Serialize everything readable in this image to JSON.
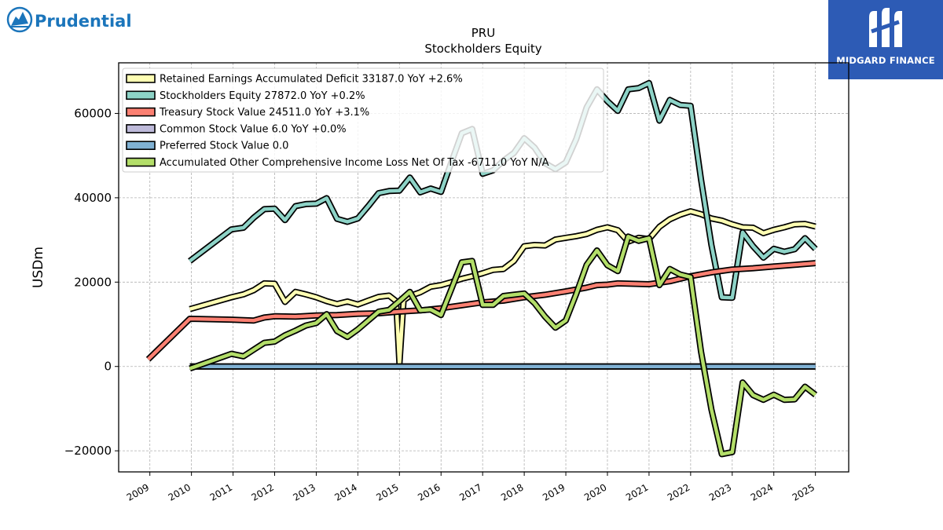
{
  "branding": {
    "left_logo_text": "Prudential",
    "left_logo_icon": "rock-of-gibraltar-icon",
    "right_logo_text": "MIDGARD FINANCE",
    "right_logo_icon": "midgard-m-icon",
    "left_color": "#1b75bb",
    "right_bg": "#2d5bb5"
  },
  "chart_data": {
    "type": "line",
    "title": "PRU",
    "subtitle": "Stockholders  Equity",
    "xlabel": "",
    "ylabel": "USDm",
    "xlim": [
      2008.25,
      2025.8
    ],
    "ylim": [
      -25000,
      72000
    ],
    "x_ticks": [
      "2009",
      "2010",
      "2011",
      "2012",
      "2013",
      "2014",
      "2015",
      "2016",
      "2017",
      "2018",
      "2019",
      "2020",
      "2021",
      "2022",
      "2023",
      "2024",
      "2025"
    ],
    "y_ticks": [
      -20000,
      0,
      20000,
      40000,
      60000
    ],
    "y_tick_labels": [
      "−20000",
      "0",
      "20000",
      "40000",
      "60000"
    ],
    "grid": true,
    "legend_position": "top-left",
    "series": [
      {
        "name": "Retained Earnings Accumulated Deficit",
        "legend": "Retained Earnings Accumulated Deficit  33187.0 YoY +2.6%",
        "color": "#ffffb3",
        "points": [
          [
            2009.96,
            13600
          ],
          [
            2010.96,
            16400
          ],
          [
            2011.25,
            17100
          ],
          [
            2011.5,
            18100
          ],
          [
            2011.75,
            19700
          ],
          [
            2012.0,
            19600
          ],
          [
            2012.25,
            15300
          ],
          [
            2012.5,
            17700
          ],
          [
            2012.75,
            17100
          ],
          [
            2013.0,
            16400
          ],
          [
            2013.25,
            15500
          ],
          [
            2013.5,
            14800
          ],
          [
            2013.75,
            15400
          ],
          [
            2014.0,
            14700
          ],
          [
            2014.25,
            15600
          ],
          [
            2014.5,
            16500
          ],
          [
            2014.75,
            16800
          ],
          [
            2014.92,
            15500
          ],
          [
            2015.0,
            600
          ],
          [
            2015.1,
            15700
          ],
          [
            2015.25,
            16700
          ],
          [
            2015.5,
            17600
          ],
          [
            2015.75,
            18900
          ],
          [
            2016.0,
            19300
          ],
          [
            2016.25,
            20000
          ],
          [
            2016.5,
            20800
          ],
          [
            2016.75,
            21400
          ],
          [
            2017.0,
            22100
          ],
          [
            2017.25,
            22900
          ],
          [
            2017.5,
            23100
          ],
          [
            2017.75,
            25000
          ],
          [
            2018.0,
            28500
          ],
          [
            2018.25,
            28800
          ],
          [
            2018.5,
            28700
          ],
          [
            2018.75,
            30100
          ],
          [
            2019.0,
            30500
          ],
          [
            2019.25,
            30900
          ],
          [
            2019.5,
            31400
          ],
          [
            2019.75,
            32400
          ],
          [
            2020.0,
            33000
          ],
          [
            2020.25,
            32300
          ],
          [
            2020.5,
            29600
          ],
          [
            2020.75,
            30500
          ],
          [
            2021.0,
            30200
          ],
          [
            2021.25,
            33100
          ],
          [
            2021.5,
            34900
          ],
          [
            2021.75,
            36000
          ],
          [
            2022.0,
            36800
          ],
          [
            2022.25,
            36100
          ],
          [
            2022.5,
            35100
          ],
          [
            2022.75,
            34600
          ],
          [
            2023.0,
            33700
          ],
          [
            2023.25,
            33000
          ],
          [
            2023.5,
            32900
          ],
          [
            2023.75,
            31600
          ],
          [
            2024.0,
            32400
          ],
          [
            2024.25,
            33000
          ],
          [
            2024.5,
            33700
          ],
          [
            2024.75,
            33800
          ],
          [
            2025.0,
            33187
          ]
        ]
      },
      {
        "name": "Stockholders Equity",
        "legend": "Stockholders Equity  27872.0 YoY +0.2%",
        "color": "#8dd3c7",
        "points": [
          [
            2009.96,
            25000
          ],
          [
            2010.96,
            32500
          ],
          [
            2011.25,
            32900
          ],
          [
            2011.5,
            35300
          ],
          [
            2011.75,
            37300
          ],
          [
            2012.0,
            37400
          ],
          [
            2012.25,
            34700
          ],
          [
            2012.5,
            38000
          ],
          [
            2012.75,
            38500
          ],
          [
            2013.0,
            38600
          ],
          [
            2013.25,
            39900
          ],
          [
            2013.5,
            35000
          ],
          [
            2013.75,
            34300
          ],
          [
            2014.0,
            35100
          ],
          [
            2014.25,
            38000
          ],
          [
            2014.5,
            41100
          ],
          [
            2014.75,
            41600
          ],
          [
            2015.0,
            41700
          ],
          [
            2015.25,
            44800
          ],
          [
            2015.5,
            41300
          ],
          [
            2015.75,
            42200
          ],
          [
            2016.0,
            41400
          ],
          [
            2016.25,
            48500
          ],
          [
            2016.5,
            55300
          ],
          [
            2016.75,
            56300
          ],
          [
            2017.0,
            45700
          ],
          [
            2017.25,
            46500
          ],
          [
            2017.5,
            48800
          ],
          [
            2017.75,
            50600
          ],
          [
            2018.0,
            54100
          ],
          [
            2018.25,
            51900
          ],
          [
            2018.5,
            48200
          ],
          [
            2018.75,
            46800
          ],
          [
            2019.0,
            48400
          ],
          [
            2019.25,
            53900
          ],
          [
            2019.5,
            61400
          ],
          [
            2019.75,
            65700
          ],
          [
            2020.0,
            62900
          ],
          [
            2020.25,
            60600
          ],
          [
            2020.5,
            65700
          ],
          [
            2020.75,
            66000
          ],
          [
            2021.0,
            67200
          ],
          [
            2021.25,
            58300
          ],
          [
            2021.5,
            63200
          ],
          [
            2021.75,
            62000
          ],
          [
            2022.0,
            61800
          ],
          [
            2022.25,
            44300
          ],
          [
            2022.5,
            28800
          ],
          [
            2022.75,
            16400
          ],
          [
            2023.0,
            16300
          ],
          [
            2023.25,
            31800
          ],
          [
            2023.5,
            28500
          ],
          [
            2023.75,
            25800
          ],
          [
            2024.0,
            27900
          ],
          [
            2024.25,
            27200
          ],
          [
            2024.5,
            27800
          ],
          [
            2024.75,
            30400
          ],
          [
            2025.0,
            27872
          ]
        ]
      },
      {
        "name": "Treasury Stock Value",
        "legend": "Treasury Stock Value  24511.0 YoY +3.1%",
        "color": "#fb8072",
        "points": [
          [
            2008.96,
            1700
          ],
          [
            2009.96,
            11300
          ],
          [
            2010.96,
            11100
          ],
          [
            2011.5,
            10900
          ],
          [
            2011.75,
            11600
          ],
          [
            2012.0,
            11900
          ],
          [
            2012.5,
            11800
          ],
          [
            2013.0,
            12100
          ],
          [
            2013.5,
            12200
          ],
          [
            2014.0,
            12500
          ],
          [
            2014.5,
            12600
          ],
          [
            2015.0,
            13000
          ],
          [
            2015.5,
            13300
          ],
          [
            2016.0,
            13800
          ],
          [
            2016.5,
            14500
          ],
          [
            2017.0,
            15200
          ],
          [
            2017.5,
            15600
          ],
          [
            2018.0,
            16400
          ],
          [
            2018.5,
            17000
          ],
          [
            2019.0,
            17800
          ],
          [
            2019.5,
            18700
          ],
          [
            2019.75,
            19300
          ],
          [
            2020.0,
            19400
          ],
          [
            2020.25,
            19700
          ],
          [
            2021.0,
            19500
          ],
          [
            2021.5,
            20200
          ],
          [
            2022.0,
            21400
          ],
          [
            2022.5,
            22300
          ],
          [
            2023.0,
            23000
          ],
          [
            2023.5,
            23300
          ],
          [
            2024.0,
            23700
          ],
          [
            2024.5,
            24100
          ],
          [
            2025.0,
            24511
          ]
        ]
      },
      {
        "name": "Common Stock Value",
        "legend": "Common Stock Value  6.0 YoY +0.0%",
        "color": "#bebada",
        "points": [
          [
            2009.96,
            6
          ],
          [
            2025.0,
            6
          ]
        ]
      },
      {
        "name": "Preferred Stock Value",
        "legend": "Preferred Stock Value  0.0",
        "color": "#80b1d3",
        "points": [
          [
            2009.96,
            0
          ],
          [
            2025.0,
            0
          ]
        ]
      },
      {
        "name": "Accumulated Other Comprehensive Income Loss Net Of Tax",
        "legend": "Accumulated Other Comprehensive Income Loss Net Of Tax  -6711.0 YoY N/A",
        "color": "#b3de69",
        "points": [
          [
            2009.96,
            -500
          ],
          [
            2010.96,
            3000
          ],
          [
            2011.25,
            2400
          ],
          [
            2011.5,
            4000
          ],
          [
            2011.75,
            5600
          ],
          [
            2012.0,
            5900
          ],
          [
            2012.25,
            7400
          ],
          [
            2012.5,
            8500
          ],
          [
            2012.75,
            9700
          ],
          [
            2013.0,
            10300
          ],
          [
            2013.25,
            12400
          ],
          [
            2013.5,
            8400
          ],
          [
            2013.75,
            7000
          ],
          [
            2014.0,
            8800
          ],
          [
            2014.25,
            10900
          ],
          [
            2014.5,
            13000
          ],
          [
            2014.75,
            13400
          ],
          [
            2015.0,
            15500
          ],
          [
            2015.25,
            17700
          ],
          [
            2015.5,
            13300
          ],
          [
            2015.75,
            13500
          ],
          [
            2016.0,
            12200
          ],
          [
            2016.25,
            18400
          ],
          [
            2016.5,
            24700
          ],
          [
            2016.75,
            25000
          ],
          [
            2017.0,
            14600
          ],
          [
            2017.25,
            14600
          ],
          [
            2017.5,
            16700
          ],
          [
            2017.75,
            17000
          ],
          [
            2018.0,
            17300
          ],
          [
            2018.25,
            15000
          ],
          [
            2018.5,
            11800
          ],
          [
            2018.75,
            9200
          ],
          [
            2019.0,
            10900
          ],
          [
            2019.25,
            17200
          ],
          [
            2019.5,
            24100
          ],
          [
            2019.75,
            27500
          ],
          [
            2020.0,
            24000
          ],
          [
            2020.25,
            22600
          ],
          [
            2020.5,
            30800
          ],
          [
            2020.75,
            29800
          ],
          [
            2021.0,
            30400
          ],
          [
            2021.25,
            19300
          ],
          [
            2021.5,
            23100
          ],
          [
            2021.75,
            21800
          ],
          [
            2022.0,
            21200
          ],
          [
            2022.25,
            3500
          ],
          [
            2022.5,
            -10200
          ],
          [
            2022.75,
            -20800
          ],
          [
            2023.0,
            -20300
          ],
          [
            2023.25,
            -3800
          ],
          [
            2023.5,
            -6800
          ],
          [
            2023.75,
            -7900
          ],
          [
            2024.0,
            -6700
          ],
          [
            2024.25,
            -7900
          ],
          [
            2024.5,
            -7800
          ],
          [
            2024.75,
            -4800
          ],
          [
            2025.0,
            -6711
          ]
        ]
      }
    ]
  }
}
